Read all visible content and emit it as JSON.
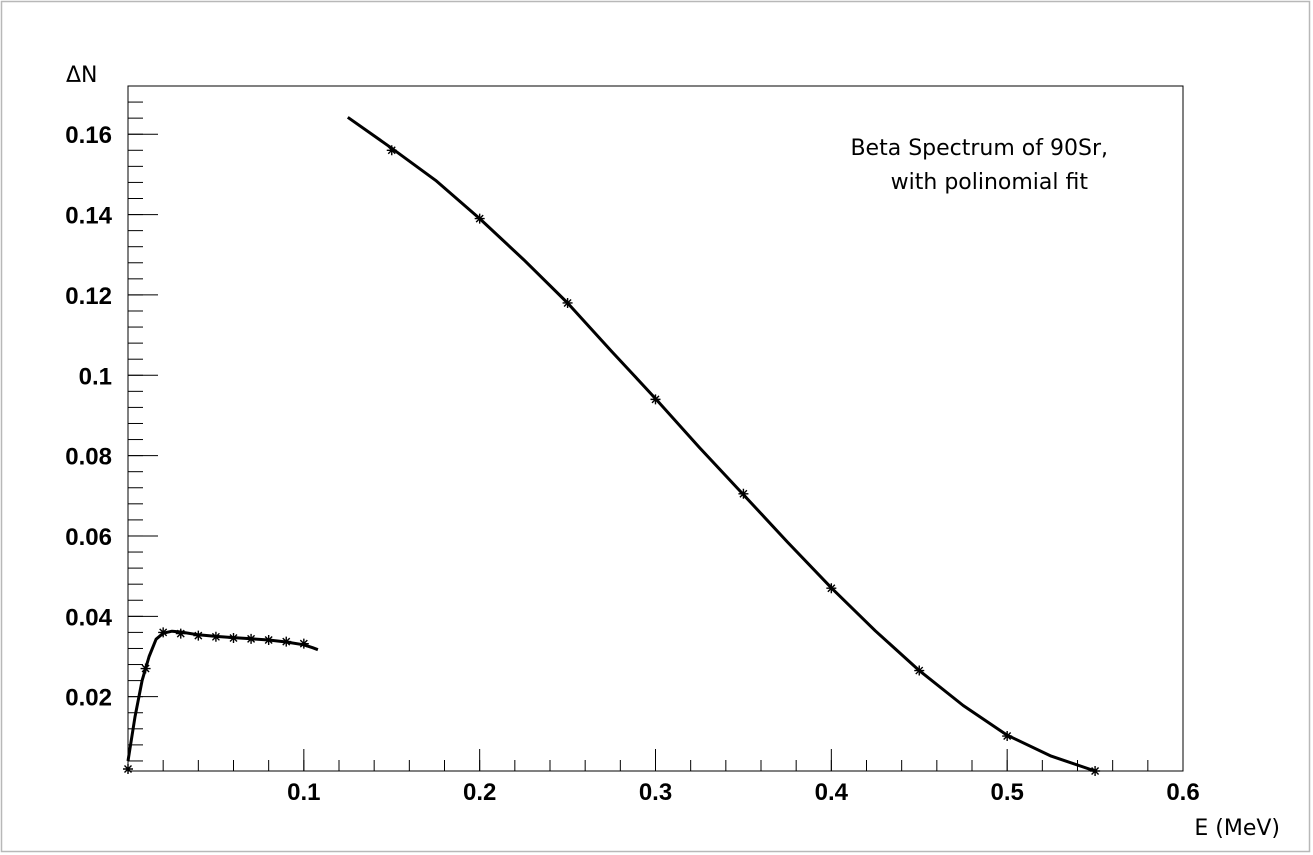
{
  "chart_data": {
    "type": "line",
    "title": "",
    "xlabel": "E (MeV)",
    "ylabel": "ΔN",
    "xlim": [
      0,
      0.6
    ],
    "ylim": [
      0.0015,
      0.172
    ],
    "grid": false,
    "legend": "top-right",
    "legend_lines": [
      "Beta Spectrum of 90Sr,",
      "with polinomial fit"
    ],
    "x_ticks": [
      {
        "value": 0.1,
        "label": "0.1"
      },
      {
        "value": 0.2,
        "label": "0.2"
      },
      {
        "value": 0.3,
        "label": "0.3"
      },
      {
        "value": 0.4,
        "label": "0.4"
      },
      {
        "value": 0.5,
        "label": "0.5"
      },
      {
        "value": 0.6,
        "label": "0.6"
      }
    ],
    "y_ticks": [
      {
        "value": 0.02,
        "label": "0.02"
      },
      {
        "value": 0.04,
        "label": "0.04"
      },
      {
        "value": 0.06,
        "label": "0.06"
      },
      {
        "value": 0.08,
        "label": "0.08"
      },
      {
        "value": 0.1,
        "label": "0.1"
      },
      {
        "value": 0.12,
        "label": "0.12"
      },
      {
        "value": 0.14,
        "label": "0.14"
      },
      {
        "value": 0.16,
        "label": "0.16"
      }
    ],
    "series": [
      {
        "name": "",
        "points": [
          {
            "x": 0.0,
            "y": 0.002
          },
          {
            "x": 0.01,
            "y": 0.027
          },
          {
            "x": 0.02,
            "y": 0.036
          },
          {
            "x": 0.03,
            "y": 0.0357
          },
          {
            "x": 0.04,
            "y": 0.0352
          },
          {
            "x": 0.05,
            "y": 0.0349
          },
          {
            "x": 0.06,
            "y": 0.0346
          },
          {
            "x": 0.07,
            "y": 0.0344
          },
          {
            "x": 0.08,
            "y": 0.0341
          },
          {
            "x": 0.09,
            "y": 0.0337
          },
          {
            "x": 0.1,
            "y": 0.0332
          }
        ],
        "fit": [
          [
            0.0,
            0.004
          ],
          [
            0.004,
            0.015
          ],
          [
            0.008,
            0.024
          ],
          [
            0.012,
            0.03
          ],
          [
            0.016,
            0.0343
          ],
          [
            0.02,
            0.0358
          ],
          [
            0.025,
            0.0363
          ],
          [
            0.03,
            0.0361
          ],
          [
            0.04,
            0.0354
          ],
          [
            0.05,
            0.035
          ],
          [
            0.06,
            0.0347
          ],
          [
            0.07,
            0.0344
          ],
          [
            0.08,
            0.0341
          ],
          [
            0.09,
            0.0336
          ],
          [
            0.1,
            0.0329
          ],
          [
            0.105,
            0.0322
          ],
          [
            0.108,
            0.0317
          ]
        ]
      },
      {
        "name": "",
        "points": [
          {
            "x": 0.15,
            "y": 0.156
          },
          {
            "x": 0.2,
            "y": 0.139
          },
          {
            "x": 0.25,
            "y": 0.118
          },
          {
            "x": 0.3,
            "y": 0.094
          },
          {
            "x": 0.35,
            "y": 0.0705
          },
          {
            "x": 0.4,
            "y": 0.047
          },
          {
            "x": 0.45,
            "y": 0.0265
          },
          {
            "x": 0.5,
            "y": 0.0102
          },
          {
            "x": 0.55,
            "y": 0.0015
          }
        ],
        "fit": [
          [
            0.125,
            0.1642
          ],
          [
            0.15,
            0.1565
          ],
          [
            0.175,
            0.1485
          ],
          [
            0.2,
            0.139
          ],
          [
            0.225,
            0.1288
          ],
          [
            0.25,
            0.118
          ],
          [
            0.275,
            0.106
          ],
          [
            0.3,
            0.0942
          ],
          [
            0.325,
            0.082
          ],
          [
            0.35,
            0.0703
          ],
          [
            0.375,
            0.0585
          ],
          [
            0.4,
            0.0471
          ],
          [
            0.425,
            0.0364
          ],
          [
            0.45,
            0.0265
          ],
          [
            0.475,
            0.0178
          ],
          [
            0.5,
            0.0104
          ],
          [
            0.525,
            0.0052
          ],
          [
            0.55,
            0.0015
          ]
        ]
      }
    ]
  }
}
